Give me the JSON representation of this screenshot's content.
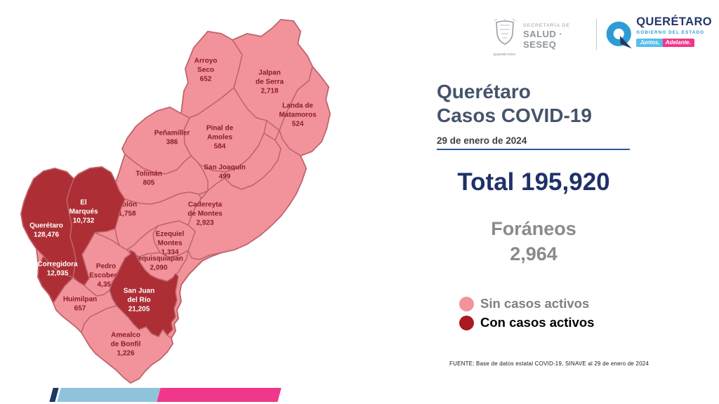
{
  "header": {
    "seseq": {
      "line1": "SECRETARÍA DE",
      "line2": "SALUD · SESEQ",
      "crest_caption": "QUERÉTARO"
    },
    "gobierno": {
      "name": "QUERÉTARO",
      "subtitle": "GOBIERNO DEL ESTADO",
      "badge_left": "Juntos,",
      "badge_right": "Adelante."
    }
  },
  "title": {
    "line1": "Querétaro",
    "line2": "Casos COVID-19",
    "date": "29 de enero de 2024"
  },
  "stats": {
    "total_text": "Total 195,920",
    "foraneos_label": "Foráneos",
    "foraneos_value": "2,964"
  },
  "legend": [
    {
      "label": "Sin casos activos",
      "color": "#f2939b",
      "emphasis": "muted"
    },
    {
      "label": "Con casos activos",
      "color": "#a81b20",
      "emphasis": "strong"
    }
  ],
  "source": "FUENTE: Base de datos estatal  COVID-19,  SINAVE  al 29 de enero de 2024",
  "map": {
    "colors": {
      "inactive_fill": "#f2939b",
      "active_fill": "#ad2e34",
      "border": "#bd646c",
      "label_on_pink": "#8c1d23",
      "label_on_dark": "#ffffff"
    },
    "municipalities": [
      {
        "id": "arroyo-seco",
        "name": "Arroyo Seco",
        "lines": [
          "Arroyo",
          "Seco"
        ],
        "value": "652",
        "active": false
      },
      {
        "id": "jalpan",
        "name": "Jalpan de Serra",
        "lines": [
          "Jalpan",
          "de Serra"
        ],
        "value": "2,718",
        "active": false
      },
      {
        "id": "landa",
        "name": "Landa de Matamoros",
        "lines": [
          "Landa de",
          "Matamoros"
        ],
        "value": "524",
        "active": false
      },
      {
        "id": "pinal",
        "name": "Pinal de Amoles",
        "lines": [
          "Pinal de",
          "Amoles"
        ],
        "value": "584",
        "active": false
      },
      {
        "id": "penamiller",
        "name": "Peñamiller",
        "lines": [
          "Peñamiller"
        ],
        "value": "386",
        "active": false
      },
      {
        "id": "san-joaquin",
        "name": "San Joaquín",
        "lines": [
          "San Joaquín"
        ],
        "value": "499",
        "active": false
      },
      {
        "id": "toliman",
        "name": "Tolimán",
        "lines": [
          "Tolimán"
        ],
        "value": "805",
        "active": false
      },
      {
        "id": "colon",
        "name": "Colón",
        "lines": [
          "Colón"
        ],
        "value": "1,758",
        "active": false
      },
      {
        "id": "cadereyta",
        "name": "Cadereyta de Montes",
        "lines": [
          "Cadereyta",
          "de Montes"
        ],
        "value": "2,923",
        "active": false
      },
      {
        "id": "ezequiel-montes",
        "name": "Ezequiel Montes",
        "lines": [
          "Ezequiel",
          "Montes"
        ],
        "value": "1,334",
        "active": false
      },
      {
        "id": "tequisquiapan",
        "name": "Tequisquiapan",
        "lines": [
          "Tequisquiapan"
        ],
        "value": "2,090",
        "active": false
      },
      {
        "id": "el-marques",
        "name": "El Marqués",
        "lines": [
          "El",
          "Marqués"
        ],
        "value": "10,732",
        "active": true
      },
      {
        "id": "queretaro",
        "name": "Querétaro",
        "lines": [
          "Querétaro"
        ],
        "value": "128,476",
        "active": true
      },
      {
        "id": "corregidora",
        "name": "Corregidora",
        "lines": [
          "Corregidora"
        ],
        "value": "12,035",
        "active": true
      },
      {
        "id": "pedro-escobedo",
        "name": "Pedro Escobedo",
        "lines": [
          "Pedro",
          "Escobedo"
        ],
        "value": "4,352",
        "active": false
      },
      {
        "id": "san-juan-del-rio",
        "name": "San Juan del Río",
        "lines": [
          "San Juan",
          "del Río"
        ],
        "value": "21,205",
        "active": true
      },
      {
        "id": "huimilpan",
        "name": "Huimilpan",
        "lines": [
          "Huimilpan"
        ],
        "value": "657",
        "active": false
      },
      {
        "id": "amealco",
        "name": "Amealco de Bonfil",
        "lines": [
          "Amealco",
          "de Bonfil"
        ],
        "value": "1,226",
        "active": false
      }
    ]
  }
}
